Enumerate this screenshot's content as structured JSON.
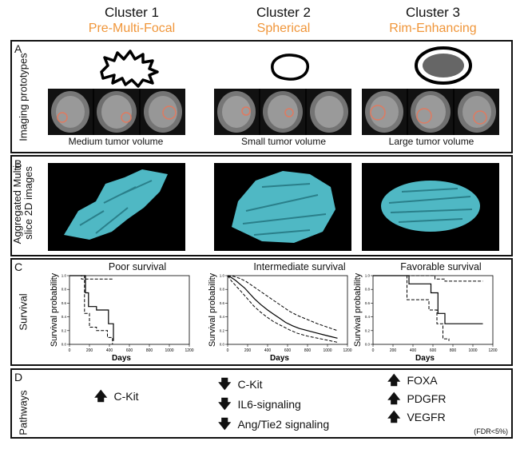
{
  "clusters": [
    {
      "title": "Cluster 1",
      "subtitle": "Pre-Multi-Focal",
      "volume": "Medium tumor volume",
      "survival": "Poor survival"
    },
    {
      "title": "Cluster 2",
      "subtitle": "Spherical",
      "volume": "Small tumor volume",
      "survival": "Intermediate survival"
    },
    {
      "title": "Cluster 3",
      "subtitle": "Rim-Enhancing",
      "volume": "Large tumor volume",
      "survival": "Favorable survival"
    }
  ],
  "panels": {
    "a": {
      "letter": "A",
      "label": "Imaging prototypes"
    },
    "b": {
      "letter": "B",
      "label_line1": "Aggregated Multi-",
      "label_line2": "slice 2D images"
    },
    "c": {
      "letter": "C",
      "label": "Survival"
    },
    "d": {
      "letter": "D",
      "label": "Pathways",
      "fdr": "(FDR<5%)"
    }
  },
  "pathways": [
    {
      "direction": "up",
      "items": [
        "C-Kit"
      ]
    },
    {
      "direction": "down",
      "items": [
        "C-Kit",
        "IL6-signaling",
        "Ang/Tie2 signaling"
      ]
    },
    {
      "direction": "up",
      "items": [
        "FOXA",
        "PDGFR",
        "VEGFR"
      ]
    }
  ],
  "colors": {
    "accent": "#f0963a",
    "tumor": "#4fb8c4"
  },
  "chart_data": [
    {
      "type": "line",
      "title": "Poor survival",
      "xlabel": "Days",
      "ylabel": "Survival probability",
      "xlim": [
        0,
        1200
      ],
      "ylim": [
        0,
        1
      ],
      "x_ticks": [
        "0",
        "200",
        "400",
        "600",
        "800",
        "1000",
        "1200"
      ],
      "y_ticks": [
        "0.0",
        "0.2",
        "0.4",
        "0.6",
        "0.8",
        "1.0"
      ],
      "series": [
        {
          "style": "solid",
          "points": [
            [
              0,
              1
            ],
            [
              160,
              1
            ],
            [
              160,
              0.75
            ],
            [
              190,
              0.75
            ],
            [
              190,
              0.55
            ],
            [
              270,
              0.55
            ],
            [
              270,
              0.5
            ],
            [
              390,
              0.5
            ],
            [
              390,
              0.3
            ],
            [
              440,
              0.3
            ],
            [
              440,
              0.05
            ]
          ]
        },
        {
          "style": "dashed",
          "points": [
            [
              0,
              1
            ],
            [
              120,
              1
            ],
            [
              120,
              0.95
            ],
            [
              440,
              0.95
            ]
          ]
        },
        {
          "style": "dashed",
          "points": [
            [
              0,
              1
            ],
            [
              150,
              1
            ],
            [
              150,
              0.45
            ],
            [
              200,
              0.45
            ],
            [
              200,
              0.25
            ],
            [
              270,
              0.25
            ],
            [
              270,
              0.2
            ],
            [
              380,
              0.2
            ],
            [
              380,
              0.1
            ],
            [
              430,
              0.1
            ],
            [
              430,
              0.0
            ]
          ]
        }
      ]
    },
    {
      "type": "line",
      "title": "Intermediate survival",
      "xlabel": "Days",
      "ylabel": "Survival probability",
      "xlim": [
        0,
        1200
      ],
      "ylim": [
        0,
        1
      ],
      "x_ticks": [
        "0",
        "200",
        "400",
        "600",
        "800",
        "1000",
        "1200"
      ],
      "y_ticks": [
        "0.0",
        "0.2",
        "0.4",
        "0.6",
        "0.8",
        "1.0"
      ],
      "series": [
        {
          "style": "solid",
          "points": [
            [
              0,
              1
            ],
            [
              40,
              0.97
            ],
            [
              80,
              0.93
            ],
            [
              120,
              0.88
            ],
            [
              170,
              0.82
            ],
            [
              220,
              0.74
            ],
            [
              270,
              0.66
            ],
            [
              330,
              0.58
            ],
            [
              400,
              0.5
            ],
            [
              460,
              0.44
            ],
            [
              520,
              0.38
            ],
            [
              580,
              0.32
            ],
            [
              650,
              0.27
            ],
            [
              720,
              0.23
            ],
            [
              800,
              0.2
            ],
            [
              880,
              0.17
            ],
            [
              960,
              0.14
            ],
            [
              1040,
              0.11
            ],
            [
              1100,
              0.09
            ]
          ]
        },
        {
          "style": "dashed",
          "points": [
            [
              0,
              1
            ],
            [
              60,
              0.99
            ],
            [
              120,
              0.96
            ],
            [
              180,
              0.92
            ],
            [
              240,
              0.86
            ],
            [
              300,
              0.8
            ],
            [
              380,
              0.72
            ],
            [
              460,
              0.64
            ],
            [
              540,
              0.56
            ],
            [
              620,
              0.48
            ],
            [
              700,
              0.42
            ],
            [
              800,
              0.36
            ],
            [
              900,
              0.3
            ],
            [
              1000,
              0.25
            ],
            [
              1100,
              0.2
            ]
          ]
        },
        {
          "style": "dashed",
          "points": [
            [
              0,
              1
            ],
            [
              40,
              0.92
            ],
            [
              90,
              0.84
            ],
            [
              140,
              0.76
            ],
            [
              200,
              0.66
            ],
            [
              260,
              0.56
            ],
            [
              320,
              0.48
            ],
            [
              390,
              0.4
            ],
            [
              460,
              0.33
            ],
            [
              540,
              0.27
            ],
            [
              620,
              0.21
            ],
            [
              700,
              0.16
            ],
            [
              800,
              0.12
            ],
            [
              900,
              0.09
            ],
            [
              1000,
              0.06
            ],
            [
              1100,
              0.03
            ]
          ]
        }
      ]
    },
    {
      "type": "line",
      "title": "Favorable survival",
      "xlabel": "Days",
      "ylabel": "Survival probability",
      "xlim": [
        0,
        1200
      ],
      "ylim": [
        0,
        1
      ],
      "x_ticks": [
        "0",
        "200",
        "400",
        "600",
        "800",
        "1000",
        "1200"
      ],
      "y_ticks": [
        "0.0",
        "0.2",
        "0.4",
        "0.6",
        "0.8",
        "1.0"
      ],
      "series": [
        {
          "style": "solid",
          "points": [
            [
              0,
              1
            ],
            [
              360,
              1
            ],
            [
              360,
              0.88
            ],
            [
              580,
              0.88
            ],
            [
              580,
              0.75
            ],
            [
              650,
              0.75
            ],
            [
              650,
              0.45
            ],
            [
              720,
              0.45
            ],
            [
              720,
              0.3
            ],
            [
              1100,
              0.3
            ]
          ]
        },
        {
          "style": "dashed",
          "points": [
            [
              0,
              1
            ],
            [
              620,
              1
            ],
            [
              620,
              0.95
            ],
            [
              720,
              0.95
            ],
            [
              720,
              0.92
            ],
            [
              1100,
              0.92
            ]
          ]
        },
        {
          "style": "dashed",
          "points": [
            [
              0,
              1
            ],
            [
              340,
              1
            ],
            [
              340,
              0.65
            ],
            [
              560,
              0.65
            ],
            [
              560,
              0.5
            ],
            [
              640,
              0.5
            ],
            [
              640,
              0.3
            ],
            [
              700,
              0.3
            ],
            [
              700,
              0.08
            ],
            [
              760,
              0.08
            ],
            [
              760,
              0.05
            ]
          ]
        }
      ]
    }
  ]
}
